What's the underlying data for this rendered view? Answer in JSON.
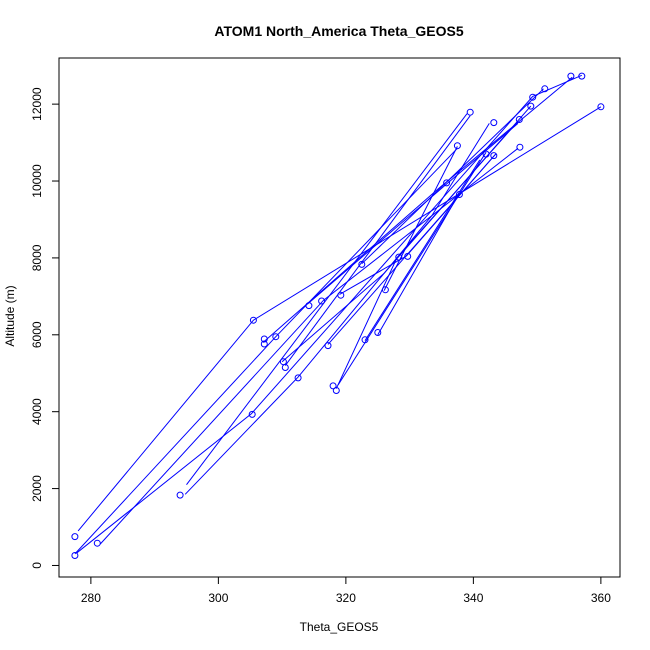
{
  "chart_data": {
    "type": "scatter",
    "title": "ATOM1 North_America Theta_GEOS5",
    "xlabel": "Theta_GEOS5",
    "ylabel": "Altitude (m)",
    "xlim": [
      275,
      363
    ],
    "ylim": [
      -300,
      13200
    ],
    "xticks": [
      280,
      300,
      320,
      340,
      360
    ],
    "yticks": [
      0,
      2000,
      4000,
      6000,
      8000,
      10000,
      12000
    ],
    "grid": false,
    "legend": "none",
    "series_color": "#0000ff",
    "points": [
      {
        "x": 277.5,
        "y": 260
      },
      {
        "x": 281.0,
        "y": 580
      },
      {
        "x": 277.5,
        "y": 750
      },
      {
        "x": 294.0,
        "y": 1830
      },
      {
        "x": 305.3,
        "y": 3930
      },
      {
        "x": 312.5,
        "y": 4880
      },
      {
        "x": 318.5,
        "y": 4550
      },
      {
        "x": 318.0,
        "y": 4670
      },
      {
        "x": 310.5,
        "y": 5150
      },
      {
        "x": 310.2,
        "y": 5300
      },
      {
        "x": 317.2,
        "y": 5720
      },
      {
        "x": 307.2,
        "y": 5760
      },
      {
        "x": 307.2,
        "y": 5890
      },
      {
        "x": 309.0,
        "y": 5950
      },
      {
        "x": 323.0,
        "y": 5870
      },
      {
        "x": 325.0,
        "y": 6060
      },
      {
        "x": 305.5,
        "y": 6380
      },
      {
        "x": 314.2,
        "y": 6760
      },
      {
        "x": 316.2,
        "y": 6880
      },
      {
        "x": 319.2,
        "y": 7030
      },
      {
        "x": 326.2,
        "y": 7170
      },
      {
        "x": 322.5,
        "y": 7830
      },
      {
        "x": 328.3,
        "y": 8020
      },
      {
        "x": 329.7,
        "y": 8040
      },
      {
        "x": 337.8,
        "y": 9650
      },
      {
        "x": 335.8,
        "y": 9950
      },
      {
        "x": 342.0,
        "y": 10700
      },
      {
        "x": 343.2,
        "y": 10660
      },
      {
        "x": 347.3,
        "y": 10880
      },
      {
        "x": 337.5,
        "y": 10920
      },
      {
        "x": 343.2,
        "y": 11520
      },
      {
        "x": 347.2,
        "y": 11600
      },
      {
        "x": 339.5,
        "y": 11790
      },
      {
        "x": 349.0,
        "y": 11950
      },
      {
        "x": 360.0,
        "y": 11930
      },
      {
        "x": 349.3,
        "y": 12180
      },
      {
        "x": 351.2,
        "y": 12400
      },
      {
        "x": 355.3,
        "y": 12730
      },
      {
        "x": 357.0,
        "y": 12730
      }
    ],
    "lines": [
      [
        [
          277.5,
          300
        ],
        [
          309.0,
          5950
        ],
        [
          337.5,
          10850
        ]
      ],
      [
        [
          278.0,
          900
        ],
        [
          305.5,
          6380
        ],
        [
          360.0,
          11930
        ]
      ],
      [
        [
          277.8,
          330
        ],
        [
          305.2,
          3950
        ],
        [
          337.0,
          9900
        ],
        [
          349.3,
          12200
        ],
        [
          357.0,
          12750
        ]
      ],
      [
        [
          281.5,
          560
        ],
        [
          316.5,
          6900
        ],
        [
          347.0,
          10850
        ]
      ],
      [
        [
          294.8,
          1850
        ],
        [
          312.5,
          4900
        ],
        [
          333.5,
          9100
        ],
        [
          342.5,
          11500
        ]
      ],
      [
        [
          295.0,
          2100
        ],
        [
          339.0,
          11750
        ]
      ],
      [
        [
          318.5,
          4600
        ],
        [
          328.0,
          8000
        ],
        [
          347.0,
          11550
        ]
      ],
      [
        [
          318.8,
          4700
        ],
        [
          342.0,
          10750
        ]
      ],
      [
        [
          310.5,
          5200
        ],
        [
          339.5,
          11700
        ]
      ],
      [
        [
          317.2,
          5750
        ],
        [
          343.5,
          10700
        ]
      ],
      [
        [
          307.0,
          5800
        ],
        [
          334.5,
          9800
        ],
        [
          355.5,
          12700
        ]
      ],
      [
        [
          323.0,
          5850
        ],
        [
          341.0,
          10550
        ]
      ],
      [
        [
          325.0,
          6000
        ],
        [
          337.5,
          9600
        ]
      ],
      [
        [
          314.0,
          6800
        ],
        [
          336.0,
          9950
        ],
        [
          347.0,
          11500
        ]
      ],
      [
        [
          319.0,
          7050
        ],
        [
          329.5,
          8050
        ],
        [
          343.5,
          10700
        ]
      ],
      [
        [
          326.0,
          7150
        ],
        [
          337.5,
          10900
        ]
      ],
      [
        [
          322.5,
          7850
        ],
        [
          351.0,
          12400
        ]
      ],
      [
        [
          310.0,
          5300
        ],
        [
          326.0,
          7600
        ],
        [
          349.0,
          11950
        ]
      ]
    ]
  }
}
